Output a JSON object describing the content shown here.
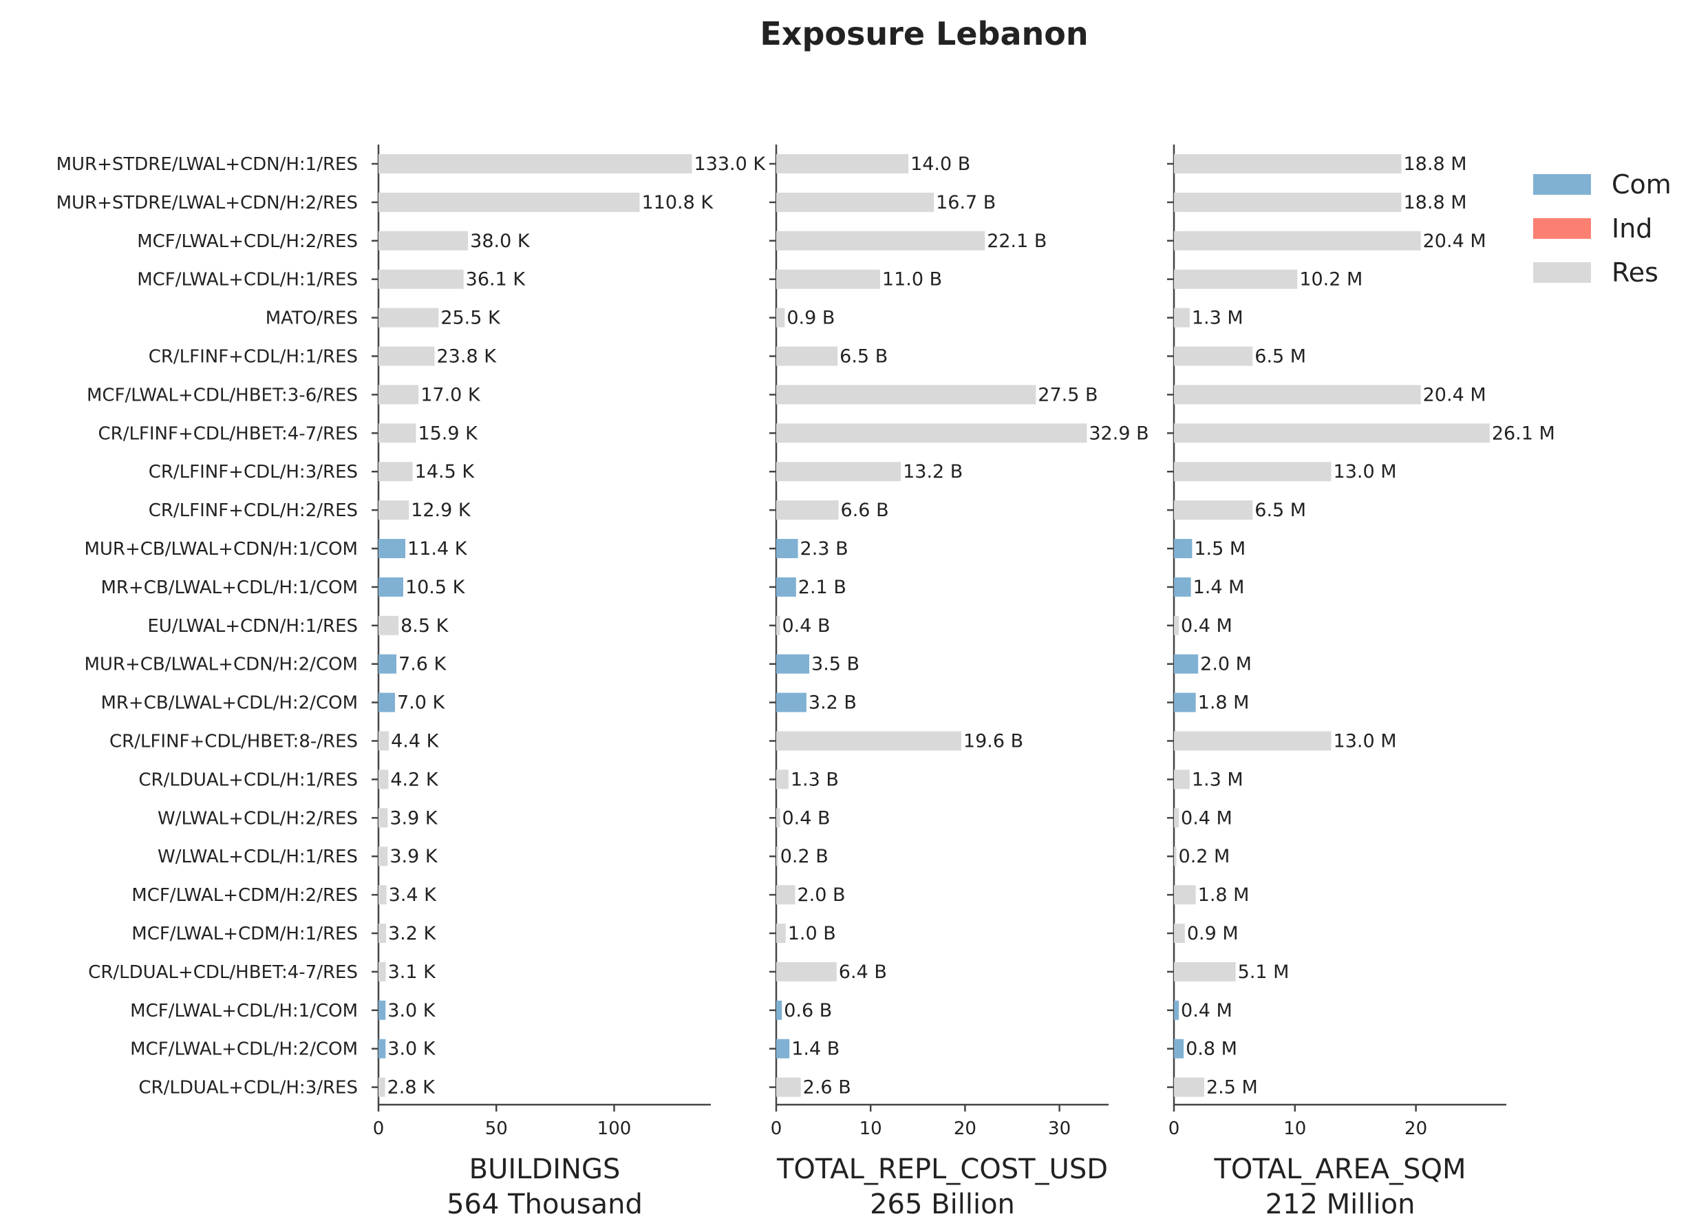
{
  "chart_data": {
    "type": "bar",
    "orientation": "horizontal",
    "title": "Exposure Lebanon",
    "categories": [
      "MUR+STDRE/LWAL+CDN/H:1/RES",
      "MUR+STDRE/LWAL+CDN/H:2/RES",
      "MCF/LWAL+CDL/H:2/RES",
      "MCF/LWAL+CDL/H:1/RES",
      "MATO/RES",
      "CR/LFINF+CDL/H:1/RES",
      "MCF/LWAL+CDL/HBET:3-6/RES",
      "CR/LFINF+CDL/HBET:4-7/RES",
      "CR/LFINF+CDL/H:3/RES",
      "CR/LFINF+CDL/H:2/RES",
      "MUR+CB/LWAL+CDN/H:1/COM",
      "MR+CB/LWAL+CDL/H:1/COM",
      "EU/LWAL+CDN/H:1/RES",
      "MUR+CB/LWAL+CDN/H:2/COM",
      "MR+CB/LWAL+CDL/H:2/COM",
      "CR/LFINF+CDL/HBET:8-/RES",
      "CR/LDUAL+CDL/H:1/RES",
      "W/LWAL+CDL/H:2/RES",
      "W/LWAL+CDL/H:1/RES",
      "MCF/LWAL+CDM/H:2/RES",
      "MCF/LWAL+CDM/H:1/RES",
      "CR/LDUAL+CDL/HBET:4-7/RES",
      "MCF/LWAL+CDL/H:1/COM",
      "MCF/LWAL+CDL/H:2/COM",
      "CR/LDUAL+CDL/H:3/RES"
    ],
    "occupancy": [
      "Res",
      "Res",
      "Res",
      "Res",
      "Res",
      "Res",
      "Res",
      "Res",
      "Res",
      "Res",
      "Com",
      "Com",
      "Res",
      "Com",
      "Com",
      "Res",
      "Res",
      "Res",
      "Res",
      "Res",
      "Res",
      "Res",
      "Com",
      "Com",
      "Res"
    ],
    "colors": {
      "Com": "#80b1d3",
      "Ind": "#fb8072",
      "Res": "#d9d9d9"
    },
    "legend": {
      "placement": "top-right",
      "entries": [
        {
          "label": "Com",
          "color": "#80b1d3"
        },
        {
          "label": "Ind",
          "color": "#fb8072"
        },
        {
          "label": "Res",
          "color": "#d9d9d9"
        }
      ]
    },
    "panels": [
      {
        "xlabel": "BUILDINGS",
        "total": "564 Thousand",
        "xlim": [
          0,
          140
        ],
        "xticks": [
          0,
          50,
          100
        ],
        "values": [
          133.0,
          110.8,
          38.0,
          36.1,
          25.5,
          23.8,
          17.0,
          15.9,
          14.5,
          12.9,
          11.4,
          10.5,
          8.5,
          7.6,
          7.0,
          4.4,
          4.2,
          3.9,
          3.9,
          3.4,
          3.2,
          3.1,
          3.0,
          3.0,
          2.8
        ],
        "labels": [
          "133.0 K",
          "110.8 K",
          "38.0 K",
          "36.1 K",
          "25.5 K",
          "23.8 K",
          "17.0 K",
          "15.9 K",
          "14.5 K",
          "12.9 K",
          "11.4 K",
          "10.5 K",
          "8.5 K",
          "7.6 K",
          "7.0 K",
          "4.4 K",
          "4.2 K",
          "3.9 K",
          "3.9 K",
          "3.4 K",
          "3.2 K",
          "3.1 K",
          "3.0 K",
          "3.0 K",
          "2.8 K"
        ]
      },
      {
        "xlabel": "TOTAL_REPL_COST_USD",
        "total": "265 Billion",
        "xlim": [
          0,
          34.6
        ],
        "xticks": [
          0,
          10,
          20,
          30
        ],
        "values": [
          14.0,
          16.7,
          22.1,
          11.0,
          0.9,
          6.5,
          27.5,
          32.9,
          13.2,
          6.6,
          2.3,
          2.1,
          0.4,
          3.5,
          3.2,
          19.6,
          1.3,
          0.4,
          0.2,
          2.0,
          1.0,
          6.4,
          0.6,
          1.4,
          2.6
        ],
        "labels": [
          "14.0 B",
          "16.7 B",
          "22.1 B",
          "11.0 B",
          "0.9 B",
          "6.5 B",
          "27.5 B",
          "32.9 B",
          "13.2 B",
          "6.6 B",
          "2.3 B",
          "2.1 B",
          "0.4 B",
          "3.5 B",
          "3.2 B",
          "19.6 B",
          "1.3 B",
          "0.4 B",
          "0.2 B",
          "2.0 B",
          "1.0 B",
          "6.4 B",
          "0.6 B",
          "1.4 B",
          "2.6 B"
        ]
      },
      {
        "xlabel": "TOTAL_AREA_SQM",
        "total": "212 Million",
        "xlim": [
          0,
          27.5
        ],
        "xticks": [
          0,
          10,
          20
        ],
        "values": [
          18.8,
          18.8,
          20.4,
          10.2,
          1.3,
          6.5,
          20.4,
          26.1,
          13.0,
          6.5,
          1.5,
          1.4,
          0.4,
          2.0,
          1.8,
          13.0,
          1.3,
          0.4,
          0.2,
          1.8,
          0.9,
          5.1,
          0.4,
          0.8,
          2.5
        ],
        "labels": [
          "18.8 M",
          "18.8 M",
          "20.4 M",
          "10.2 M",
          "1.3 M",
          "6.5 M",
          "20.4 M",
          "26.1 M",
          "13.0 M",
          "6.5 M",
          "1.5 M",
          "1.4 M",
          "0.4 M",
          "2.0 M",
          "1.8 M",
          "13.0 M",
          "1.3 M",
          "0.4 M",
          "0.2 M",
          "1.8 M",
          "0.9 M",
          "5.1 M",
          "0.4 M",
          "0.8 M",
          "2.5 M"
        ]
      }
    ]
  }
}
